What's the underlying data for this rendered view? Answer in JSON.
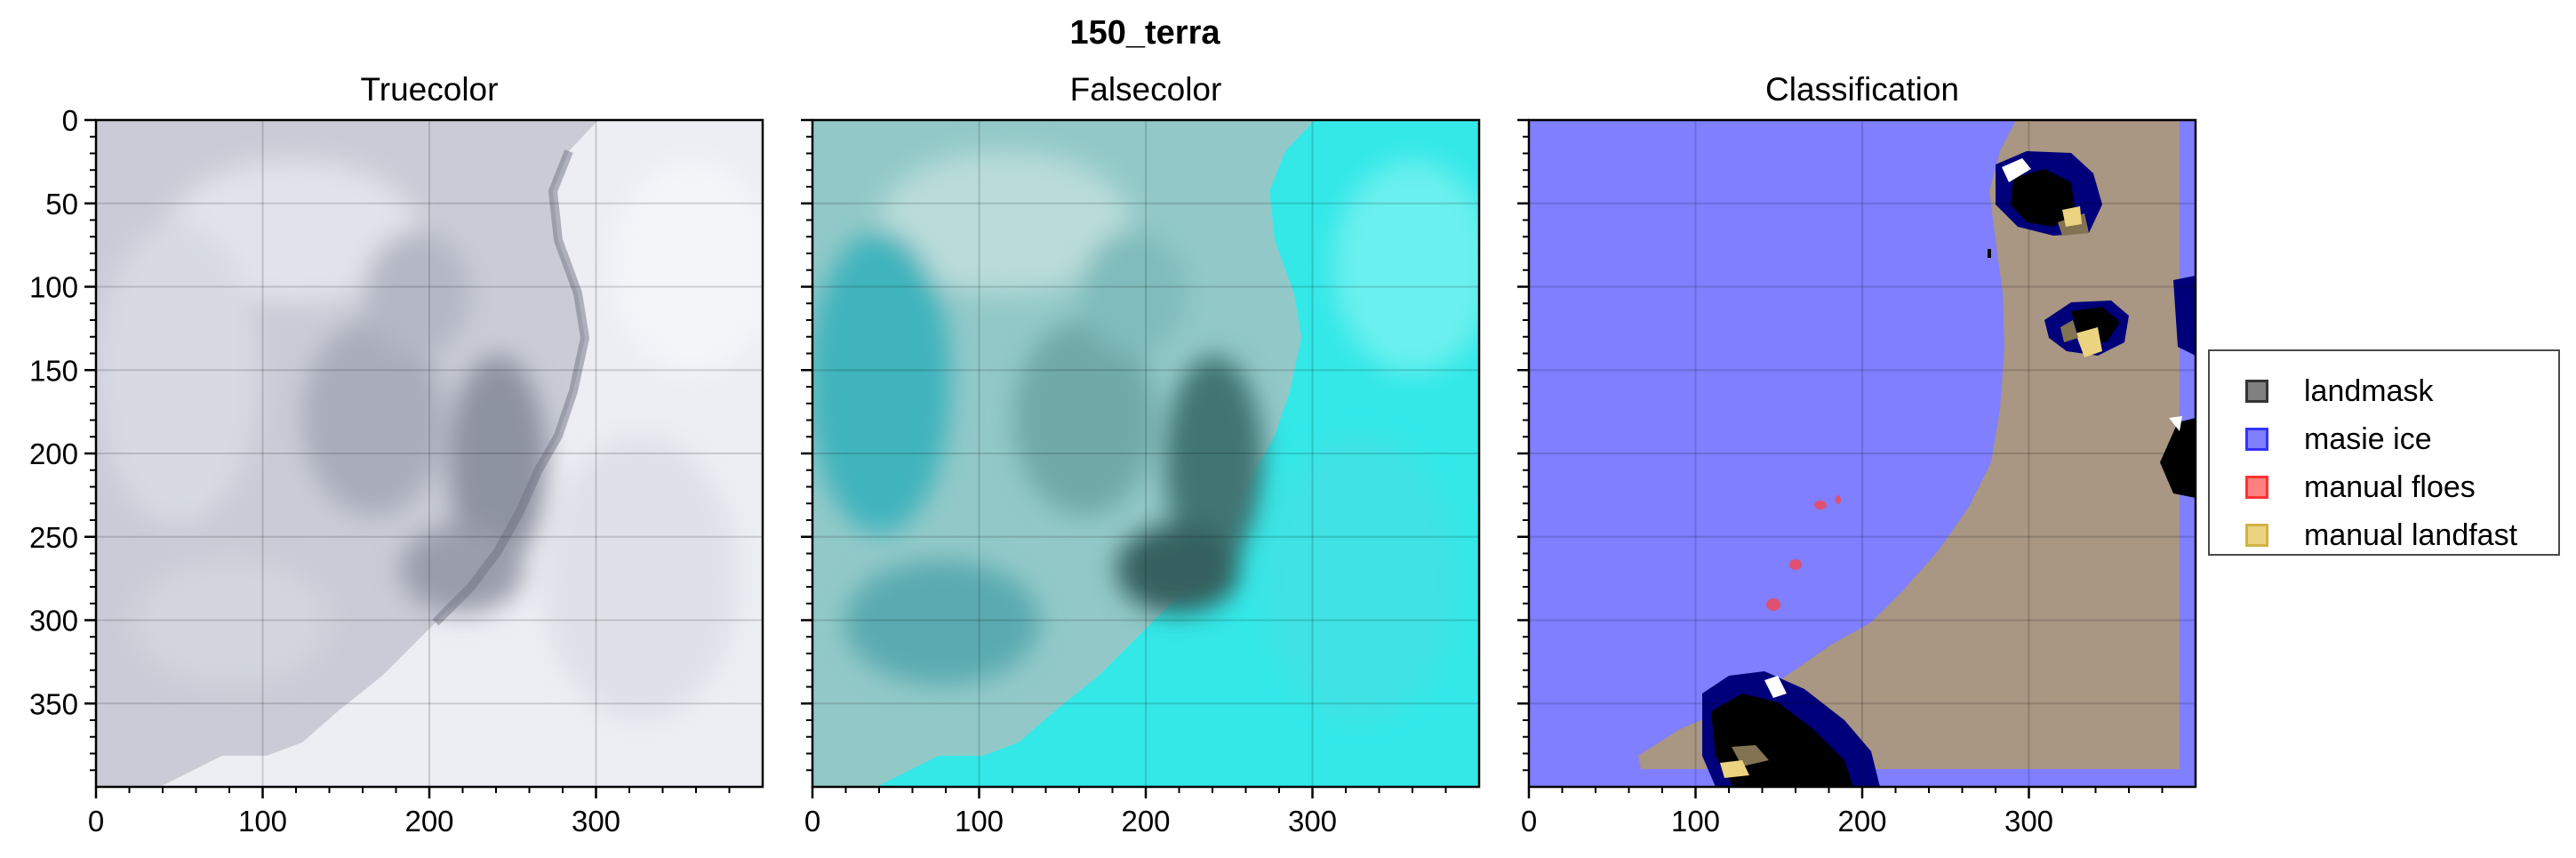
{
  "figure": {
    "suptitle": "150_terra"
  },
  "chart_data": [
    {
      "type": "image",
      "title": "Truecolor",
      "xlim": [
        0,
        400
      ],
      "ylim": [
        400,
        0
      ],
      "xticks": [
        0,
        100,
        200,
        300
      ],
      "yticks": [
        0,
        50,
        100,
        150,
        200,
        250,
        300,
        350
      ],
      "grid": true,
      "colors": {
        "cloud": "#dcdde4",
        "ice": "#b9bcc8",
        "dark_ice": "#7f8491",
        "sky": "#eef0f5"
      }
    },
    {
      "type": "image",
      "title": "Falsecolor",
      "xlim": [
        0,
        400
      ],
      "ylim": [
        400,
        0
      ],
      "xticks": [
        0,
        100,
        200,
        300
      ],
      "yticks": [
        0,
        50,
        100,
        150,
        200,
        250,
        300,
        350
      ],
      "grid": true,
      "colors": {
        "water": "#2ee7e8",
        "ice": "#8fcfcf",
        "dark_ice": "#3e6a6a",
        "cloud": "#b7e3e1"
      }
    },
    {
      "type": "image",
      "title": "Classification",
      "xlim": [
        0,
        400
      ],
      "ylim": [
        400,
        0
      ],
      "xticks": [
        0,
        100,
        200,
        300
      ],
      "yticks": [
        0,
        50,
        100,
        150,
        200,
        250,
        300,
        350
      ],
      "grid": true,
      "legend_position": "right",
      "legend": [
        {
          "label": "landmask",
          "color": "#808080",
          "edge": "#333333"
        },
        {
          "label": "masie ice",
          "color": "#7f7fff",
          "edge": "#3333ff"
        },
        {
          "label": "manual floes",
          "color": "#ff7f7f",
          "edge": "#ff3333"
        },
        {
          "label": "manual landfast",
          "color": "#ecd37f",
          "edge": "#d1b344"
        }
      ],
      "colors": {
        "masie": "#7f7fff",
        "land": "#a99683",
        "black": "#000000",
        "navy": "#000080",
        "white": "#ffffff",
        "olive": "#827452",
        "floe": "#e05070",
        "fast": "#ecd37f"
      }
    }
  ]
}
